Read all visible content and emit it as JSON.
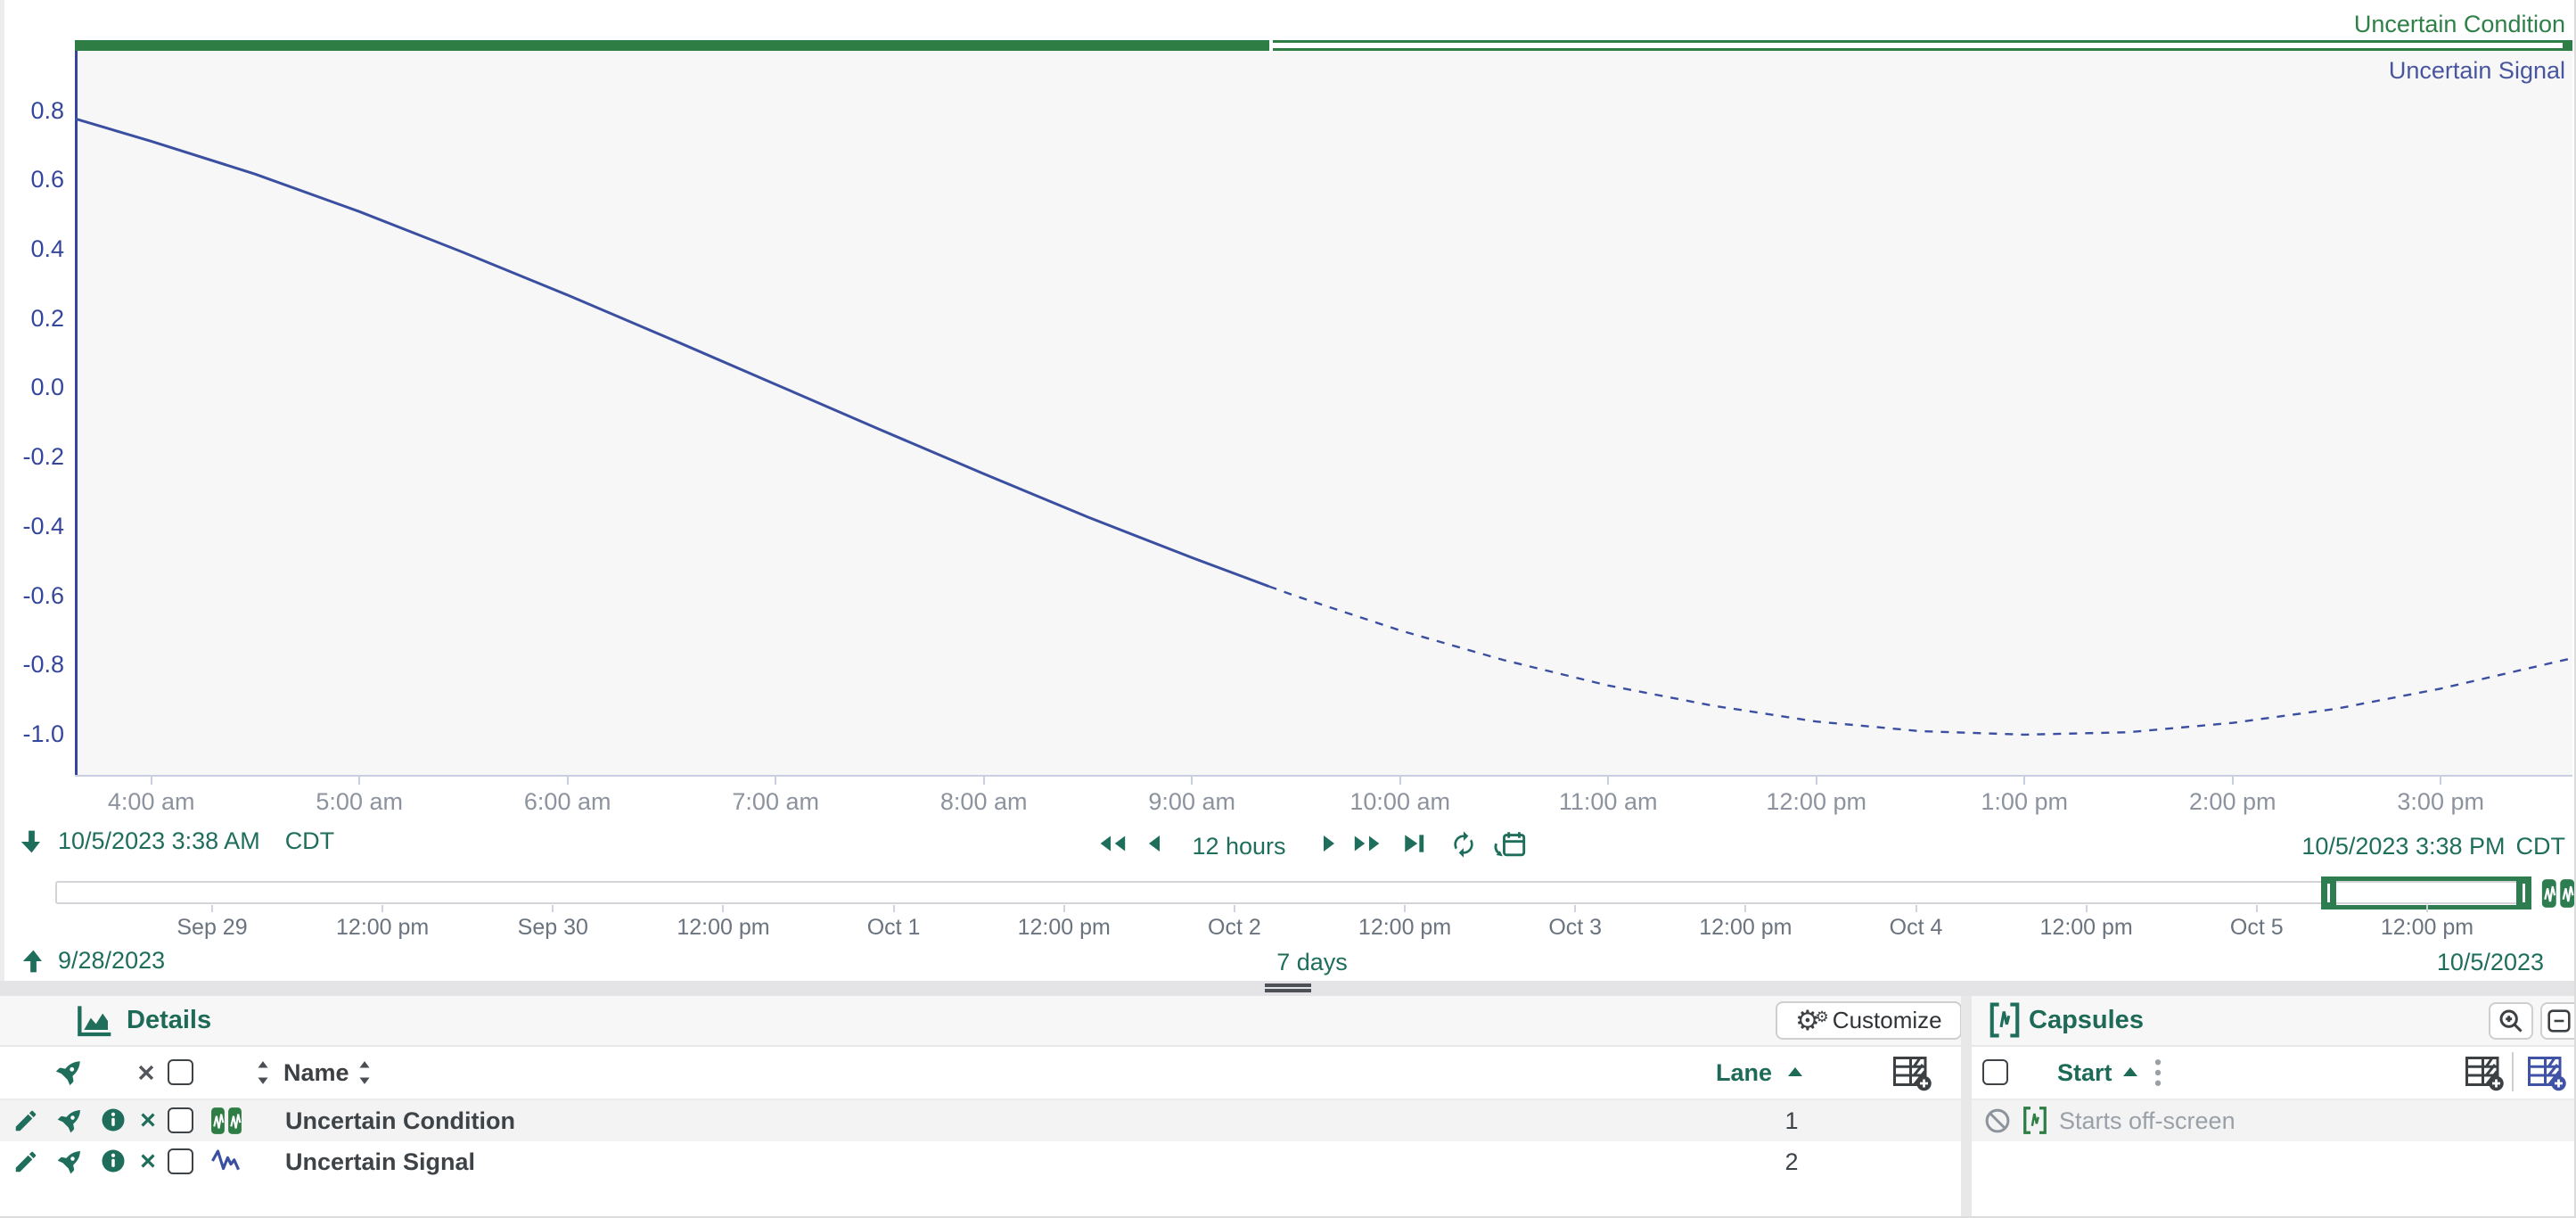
{
  "colors": {
    "teal": "#1f6e5b",
    "condition_green": "#2e7d44",
    "signal_blue": "#3b4fa1",
    "axis_blue": "#35479c",
    "muted_gray": "#9aa0a7",
    "tick_gray": "#8d939e"
  },
  "chart": {
    "condition_label": "Uncertain Condition",
    "signal_label": "Uncertain Signal"
  },
  "chart_data": {
    "type": "line",
    "title": "",
    "xlabel": "",
    "ylabel": "",
    "x_range_hours": [
      3.633,
      15.633
    ],
    "value_window": {
      "top": 0.974,
      "bottom": -1.116
    },
    "y_ticks": [
      0.8,
      0.6,
      0.4,
      0.2,
      0.0,
      -0.2,
      -0.4,
      -0.6,
      -0.8,
      -1.0
    ],
    "x_ticks": [
      {
        "hour": 4,
        "label": "4:00 am"
      },
      {
        "hour": 5,
        "label": "5:00 am"
      },
      {
        "hour": 6,
        "label": "6:00 am"
      },
      {
        "hour": 7,
        "label": "7:00 am"
      },
      {
        "hour": 8,
        "label": "8:00 am"
      },
      {
        "hour": 9,
        "label": "9:00 am"
      },
      {
        "hour": 10,
        "label": "10:00 am"
      },
      {
        "hour": 11,
        "label": "11:00 am"
      },
      {
        "hour": 12,
        "label": "12:00 pm"
      },
      {
        "hour": 13,
        "label": "1:00 pm"
      },
      {
        "hour": 14,
        "label": "2:00 pm"
      },
      {
        "hour": 15,
        "label": "3:00 pm"
      }
    ],
    "series": [
      {
        "name": "Uncertain Signal",
        "color": "#3b4fa1",
        "solid_until_hour": 9.37,
        "points": [
          [
            3.633,
            0.778
          ],
          [
            4.0,
            0.713
          ],
          [
            4.5,
            0.618
          ],
          [
            5.0,
            0.51
          ],
          [
            5.5,
            0.392
          ],
          [
            6.0,
            0.269
          ],
          [
            6.5,
            0.141
          ],
          [
            7.0,
            0.011
          ],
          [
            7.5,
            -0.119
          ],
          [
            8.0,
            -0.247
          ],
          [
            8.5,
            -0.372
          ],
          [
            9.0,
            -0.489
          ],
          [
            9.37,
            -0.572
          ],
          [
            9.5,
            -0.6
          ],
          [
            10.0,
            -0.699
          ],
          [
            10.5,
            -0.785
          ],
          [
            11.0,
            -0.858
          ],
          [
            11.5,
            -0.916
          ],
          [
            12.0,
            -0.962
          ],
          [
            12.5,
            -0.99
          ],
          [
            13.0,
            -1.0
          ],
          [
            13.5,
            -0.993
          ],
          [
            14.0,
            -0.966
          ],
          [
            14.5,
            -0.925
          ],
          [
            15.0,
            -0.867
          ],
          [
            15.633,
            -0.779
          ]
        ]
      }
    ],
    "condition": {
      "name": "Uncertain Condition",
      "color": "#2e7d44",
      "capsule": {
        "start_hour": 3.633,
        "end_hour": 15.633,
        "certain_until_hour": 9.37
      }
    }
  },
  "toolbar": {
    "start": "10/5/2023 3:38 AM",
    "start_tz": "CDT",
    "duration": "12 hours",
    "end": "10/5/2023 3:38 PM",
    "end_tz": "CDT"
  },
  "timeline": {
    "ticks": [
      "Sep 29",
      "12:00 pm",
      "Sep 30",
      "12:00 pm",
      "Oct 1",
      "12:00 pm",
      "Oct 2",
      "12:00 pm",
      "Oct 3",
      "12:00 pm",
      "Oct 4",
      "12:00 pm",
      "Oct 5",
      "12:00 pm"
    ],
    "start_date": "9/28/2023",
    "duration": "7 days",
    "end_date": "10/5/2023"
  },
  "details": {
    "title": "Details",
    "customize": "Customize",
    "name_col": "Name",
    "lane_col": "Lane",
    "rows": [
      {
        "name": "Uncertain Condition",
        "lane": "1",
        "type": "condition"
      },
      {
        "name": "Uncertain Signal",
        "lane": "2",
        "type": "signal"
      }
    ]
  },
  "capsules": {
    "title": "Capsules",
    "start_col": "Start",
    "rows": [
      {
        "start": "Starts off-screen"
      }
    ]
  }
}
